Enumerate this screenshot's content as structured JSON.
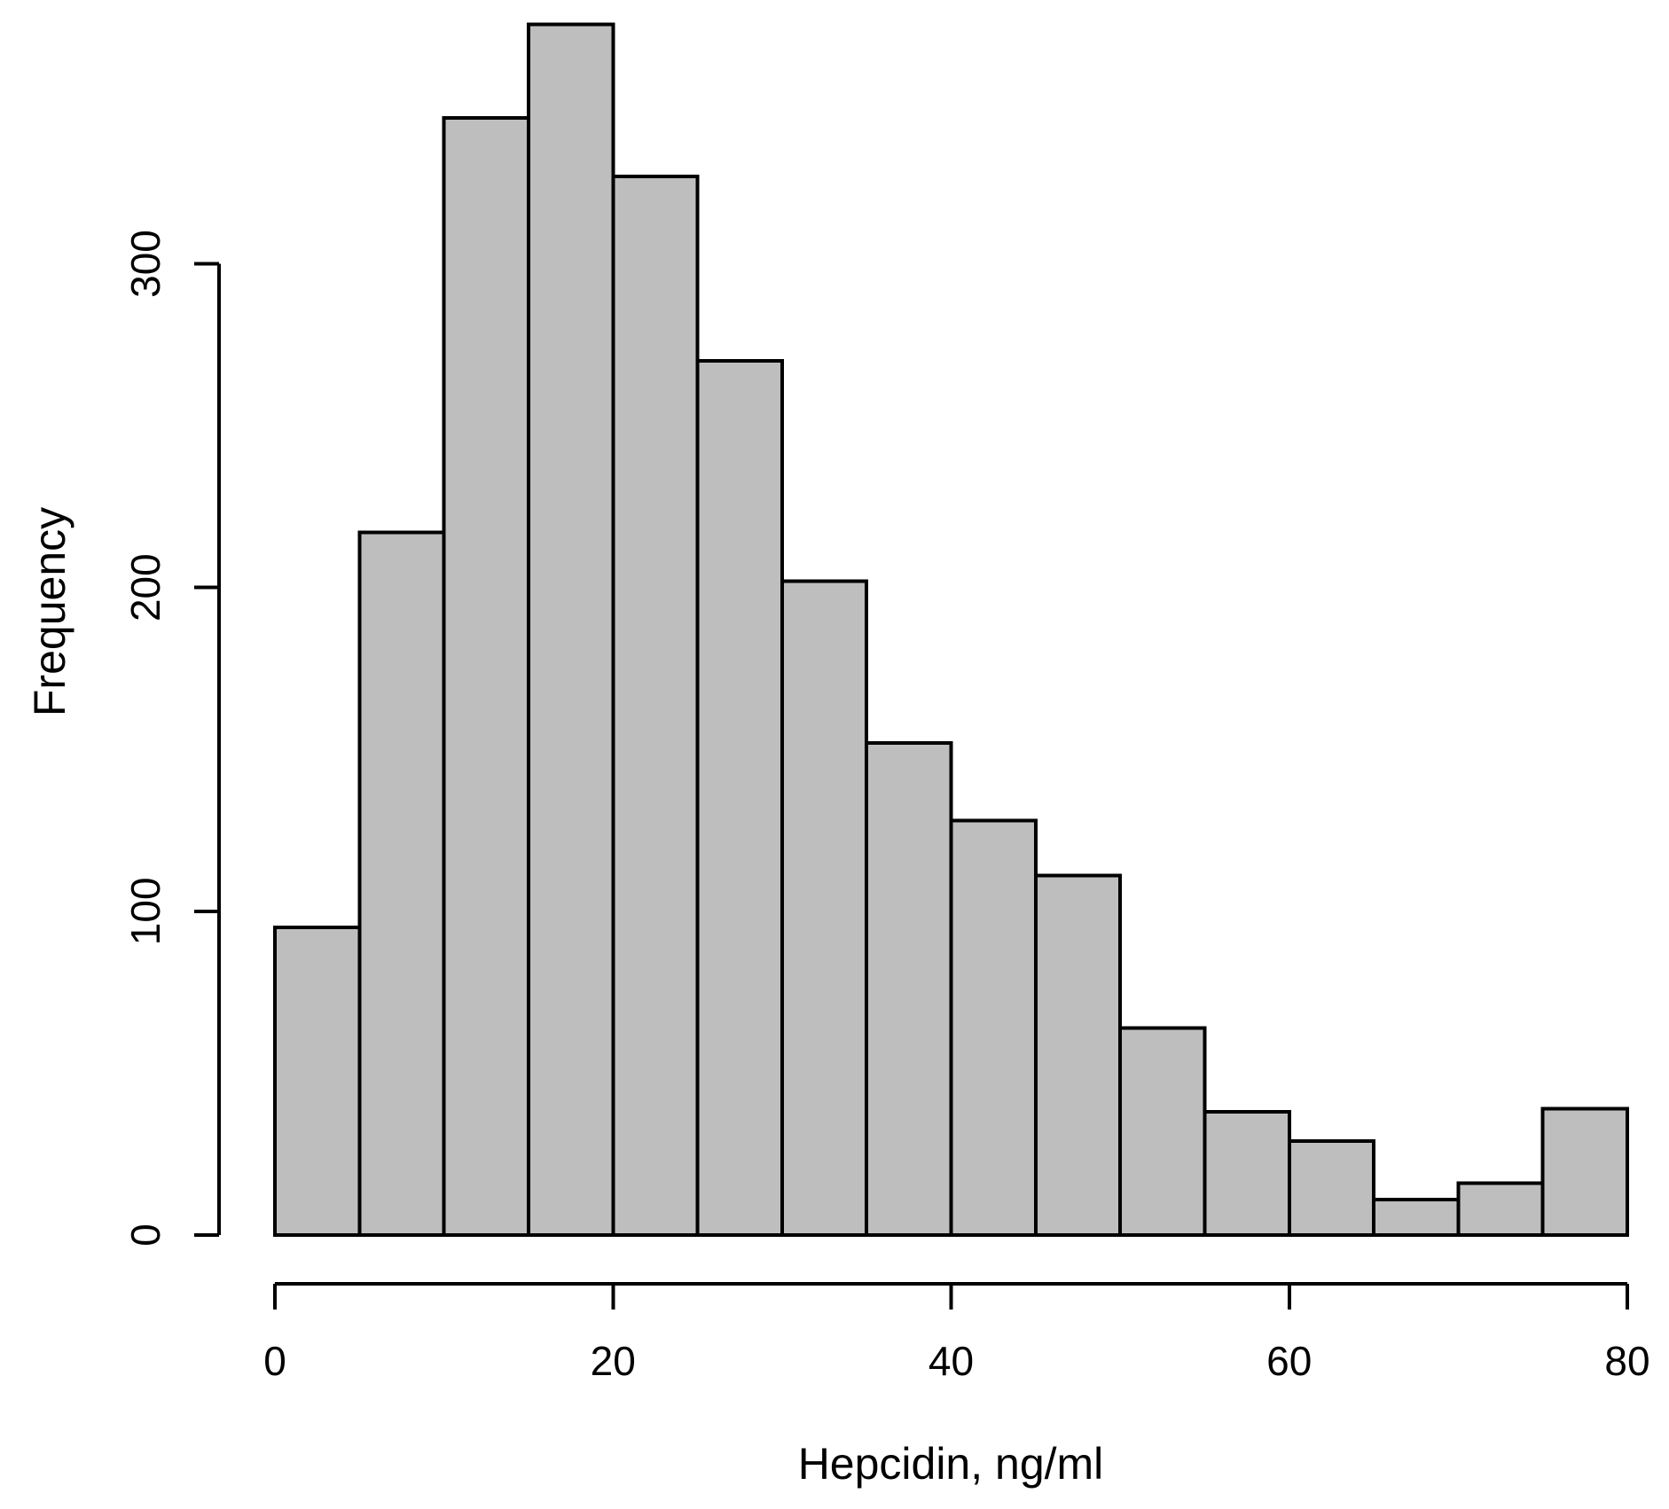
{
  "chart_data": {
    "type": "bar",
    "subtype": "histogram",
    "title": "",
    "xlabel": "Hepcidin, ng/ml",
    "ylabel": "Frequency",
    "bin_width": 5,
    "bin_edges": [
      0,
      5,
      10,
      15,
      20,
      25,
      30,
      35,
      40,
      45,
      50,
      55,
      60,
      65,
      70,
      75,
      80
    ],
    "categories": [
      "0-5",
      "5-10",
      "10-15",
      "15-20",
      "20-25",
      "25-30",
      "30-35",
      "35-40",
      "40-45",
      "45-50",
      "50-55",
      "55-60",
      "60-65",
      "65-70",
      "70-75",
      "75-80"
    ],
    "values": [
      95,
      217,
      345,
      374,
      327,
      270,
      202,
      152,
      128,
      111,
      64,
      38,
      29,
      11,
      16,
      39
    ],
    "x_ticks": [
      0,
      20,
      40,
      60,
      80
    ],
    "y_ticks": [
      0,
      100,
      200,
      300
    ],
    "xlim": [
      0,
      80
    ],
    "ylim": [
      0,
      380
    ],
    "grid": "off",
    "legend": "none",
    "bar_fill": "#bebebe",
    "bar_stroke": "#000000",
    "axis_color": "#000000",
    "background": "#ffffff"
  }
}
